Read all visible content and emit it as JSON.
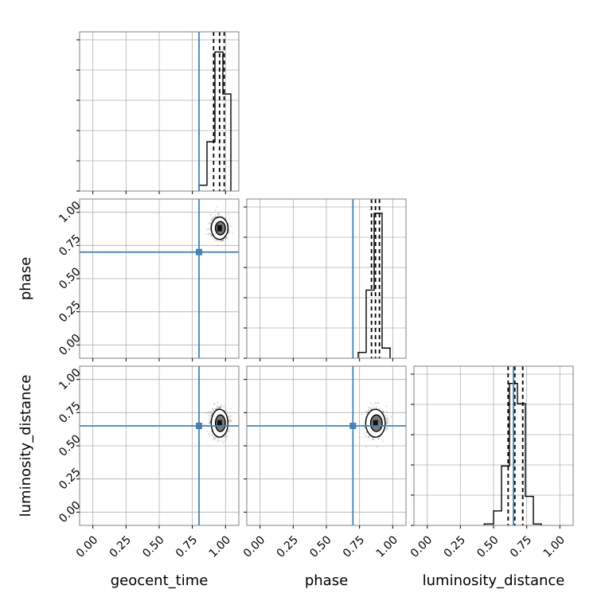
{
  "chart_data": {
    "type": "corner",
    "parameters": [
      "geocent_time",
      "phase",
      "luminosity_distance"
    ],
    "axis_labels": {
      "geocent_time": "geocent_time",
      "phase": "phase",
      "luminosity_distance": "luminosity_distance"
    },
    "range": [
      -0.1,
      1.1
    ],
    "ticks": [
      "0.00",
      "0.25",
      "0.50",
      "0.75",
      "1.00"
    ],
    "tick_values": [
      0,
      0.25,
      0.5,
      0.75,
      1.0
    ],
    "grid": true,
    "truths": {
      "geocent_time": 0.8,
      "phase": 0.7,
      "luminosity_distance": 0.65
    },
    "truth_color": "#4682b4",
    "histograms": {
      "geocent_time": {
        "bin_edges": [
          0.8,
          0.86,
          0.92,
          0.98,
          1.04
        ],
        "heights": [
          0.04,
          0.34,
          0.96,
          0.67
        ],
        "quantiles": [
          0.91,
          0.955,
          0.99
        ]
      },
      "phase": {
        "bin_edges": [
          0.74,
          0.8,
          0.86,
          0.92,
          0.98
        ],
        "heights": [
          0.04,
          0.47,
          1.0,
          0.07
        ],
        "quantiles": [
          0.84,
          0.87,
          0.9
        ]
      },
      "luminosity_distance": {
        "bin_edges": [
          0.43,
          0.5,
          0.56,
          0.62,
          0.68,
          0.74,
          0.8,
          0.86
        ],
        "heights": [
          0.01,
          0.1,
          0.41,
          0.98,
          0.84,
          0.2,
          0.01
        ],
        "quantiles": [
          0.61,
          0.66,
          0.72
        ]
      }
    },
    "scatter_2d": [
      {
        "x": "geocent_time",
        "y": "phase",
        "center": [
          0.955,
          0.88
        ],
        "spread": [
          0.03,
          0.04
        ]
      },
      {
        "x": "geocent_time",
        "y": "luminosity_distance",
        "center": [
          0.955,
          0.67
        ],
        "spread": [
          0.03,
          0.05
        ]
      },
      {
        "x": "phase",
        "y": "luminosity_distance",
        "center": [
          0.87,
          0.67
        ],
        "spread": [
          0.035,
          0.05
        ]
      }
    ]
  }
}
